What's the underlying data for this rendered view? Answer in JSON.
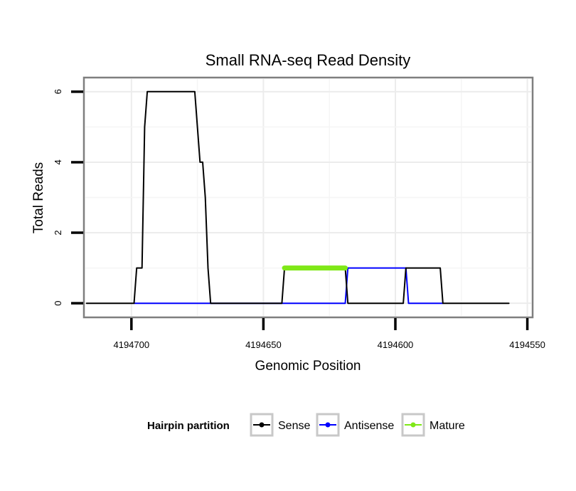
{
  "chart_data": {
    "type": "line",
    "title": "Small RNA-seq Read Density",
    "xlabel": "Genomic Position",
    "ylabel": "Total Reads",
    "xlim": [
      4194718,
      4194548
    ],
    "ylim": [
      -0.4,
      6.4
    ],
    "x_reversed": true,
    "x_ticks": [
      4194700,
      4194650,
      4194600,
      4194550
    ],
    "x_tick_labels": [
      "4194700",
      "4194650",
      "4194600",
      "4194550"
    ],
    "y_ticks": [
      0,
      2,
      4,
      6
    ],
    "y_tick_labels": [
      "0",
      "2",
      "4",
      "6"
    ],
    "grid": true,
    "legend": {
      "title": "Hairpin partition",
      "position": "bottom",
      "entries": [
        "Sense",
        "Antisense",
        "Mature"
      ]
    },
    "series": [
      {
        "name": "Sense",
        "color": "#000000",
        "x": [
          4194717,
          4194699,
          4194698,
          4194696,
          4194695,
          4194694,
          4194676,
          4194674,
          4194673,
          4194672,
          4194671,
          4194670,
          4194668,
          4194643,
          4194642,
          4194619,
          4194618,
          4194597,
          4194596,
          4194583,
          4194582,
          4194557
        ],
        "y": [
          0,
          0,
          1,
          1,
          5,
          6,
          6,
          4,
          4,
          3,
          1,
          0,
          0,
          0,
          1,
          1,
          0,
          0,
          1,
          1,
          0,
          0
        ]
      },
      {
        "name": "Antisense",
        "color": "#0000ff",
        "x": [
          4194699,
          4194619,
          4194618,
          4194596,
          4194595,
          4194582
        ],
        "y": [
          0,
          0,
          1,
          1,
          0,
          0
        ]
      },
      {
        "name": "Mature",
        "color": "#7fe817",
        "x": [
          4194642,
          4194619
        ],
        "y": [
          1,
          1
        ]
      }
    ]
  }
}
